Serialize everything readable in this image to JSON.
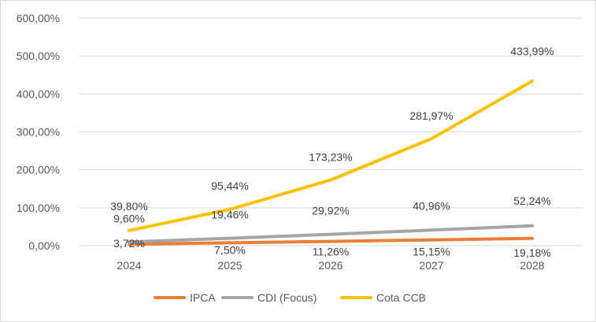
{
  "chart_data": {
    "type": "line",
    "title": "",
    "xlabel": "",
    "ylabel": "",
    "categories": [
      "2024",
      "2025",
      "2026",
      "2027",
      "2028"
    ],
    "ylim": [
      0,
      600
    ],
    "yticks": [
      0,
      100,
      200,
      300,
      400,
      500,
      600
    ],
    "ytick_labels": [
      "0,00%",
      "100,00%",
      "200,00%",
      "300,00%",
      "400,00%",
      "500,00%",
      "600,00%"
    ],
    "grid": true,
    "legend": "bottom",
    "series": [
      {
        "name": "IPCA",
        "color": "#ed7d31",
        "values": [
          3.72,
          7.5,
          11.26,
          15.15,
          19.18
        ],
        "labels": [
          "3,72%",
          "7,50%",
          "11,26%",
          "15,15%",
          "19,18%"
        ]
      },
      {
        "name": "CDI (Focus)",
        "color": "#a5a5a5",
        "values": [
          9.6,
          19.46,
          29.92,
          40.96,
          52.24
        ],
        "labels": [
          "9,60%",
          "19,46%",
          "29,92%",
          "40,96%",
          "52,24%"
        ]
      },
      {
        "name": "Cota CCB",
        "color": "#ffc000",
        "values": [
          39.8,
          95.44,
          173.23,
          281.97,
          433.99
        ],
        "labels": [
          "39,80%",
          "95,44%",
          "173,23%",
          "281,97%",
          "433,99%"
        ]
      }
    ]
  }
}
